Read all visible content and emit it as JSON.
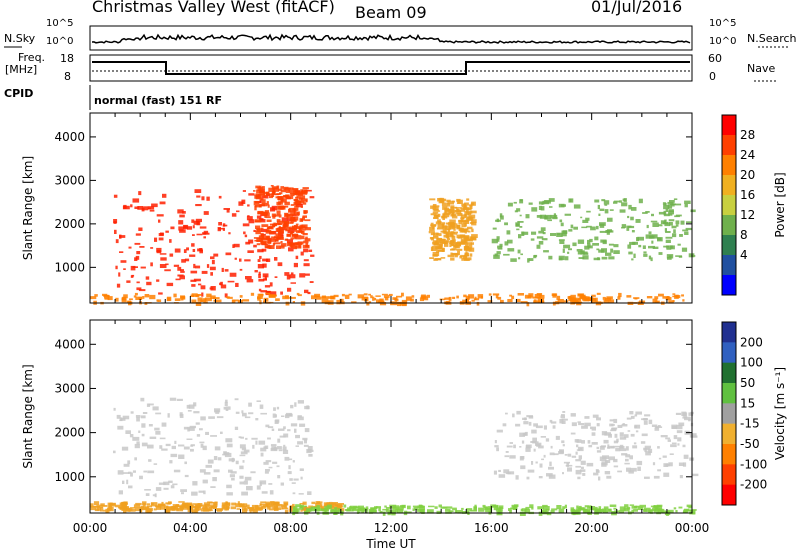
{
  "header": {
    "title": "Christmas Valley West (fitACF)",
    "beam": "Beam 09",
    "date": "01/Jul/2016"
  },
  "strip": {
    "nsky_label": "N.Sky",
    "nsearch_label": "N.Search",
    "noise_ticks_left": [
      "10^5",
      "10^0"
    ],
    "noise_ticks_right": [
      "10^5",
      "10^0"
    ],
    "freq_label_1": "Freq.",
    "freq_label_2": "[MHz]",
    "freq_ticks": [
      "18",
      "8"
    ],
    "nave_label": "Nave",
    "nave_ticks": [
      "60",
      "0"
    ],
    "cpid_label": "CPID",
    "cpid_text": "normal (fast) 151 RF"
  },
  "chart_data": [
    {
      "type": "heatmap",
      "name": "power-panel",
      "ylabel": "Slant Range [km]",
      "ylim": [
        180,
        4550
      ],
      "yticks": [
        "4000",
        "3000",
        "2000",
        "1000"
      ],
      "ytick_values": [
        4000,
        3000,
        2000,
        1000
      ],
      "colorbar_label": "Power [dB]",
      "colorbar_ticks": [
        "28",
        "24",
        "20",
        "16",
        "12",
        "8",
        "4"
      ],
      "colorbar_colors": [
        "#ff0000",
        "#ff4000",
        "#ff8000",
        "#f0b020",
        "#c8d040",
        "#6fb04c",
        "#2f8050",
        "#2050a0",
        "#0000ff"
      ],
      "regions": [
        {
          "x": [
            0.9,
            8.8
          ],
          "y": [
            400,
            2800
          ],
          "color": "#ff2000"
        },
        {
          "x": [
            6.5,
            8.6
          ],
          "y": [
            1500,
            2900
          ],
          "color": "#ff4000"
        },
        {
          "x": [
            0.0,
            24.0
          ],
          "y": [
            200,
            420
          ],
          "color": "#ff8000"
        },
        {
          "x": [
            13.5,
            15.2
          ],
          "y": [
            1200,
            2600
          ],
          "color": "#f0a020"
        },
        {
          "x": [
            16.0,
            24.0
          ],
          "y": [
            1200,
            2600
          ],
          "color": "#6fb04c"
        }
      ]
    },
    {
      "type": "heatmap",
      "name": "velocity-panel",
      "ylabel": "Slant Range [km]",
      "ylim": [
        180,
        4550
      ],
      "yticks": [
        "4000",
        "3000",
        "2000",
        "1000"
      ],
      "ytick_values": [
        4000,
        3000,
        2000,
        1000
      ],
      "xlabel": "Time UT",
      "xticks": [
        "00:00",
        "04:00",
        "08:00",
        "12:00",
        "16:00",
        "20:00",
        "00:00"
      ],
      "xlim": [
        0,
        24
      ],
      "colorbar_label": "Velocity [m s⁻¹]",
      "colorbar_ticks": [
        "200",
        "100",
        "50",
        "15",
        "-15",
        "-50",
        "-100",
        "-200"
      ],
      "colorbar_colors": [
        "#203090",
        "#3060c0",
        "#207030",
        "#60c040",
        "#a0a0a0",
        "#f0b030",
        "#ff8000",
        "#ff4000",
        "#ff0000"
      ],
      "regions": [
        {
          "x": [
            0.9,
            8.8
          ],
          "y": [
            600,
            2800
          ],
          "color": "#c8c8c8"
        },
        {
          "x": [
            16.0,
            24.0
          ],
          "y": [
            1000,
            2500
          ],
          "color": "#c8c8c8"
        },
        {
          "x": [
            0.0,
            10.0
          ],
          "y": [
            250,
            450
          ],
          "color": "#f0a020"
        },
        {
          "x": [
            8.0,
            24.0
          ],
          "y": [
            200,
            380
          ],
          "color": "#80d040"
        }
      ]
    }
  ]
}
